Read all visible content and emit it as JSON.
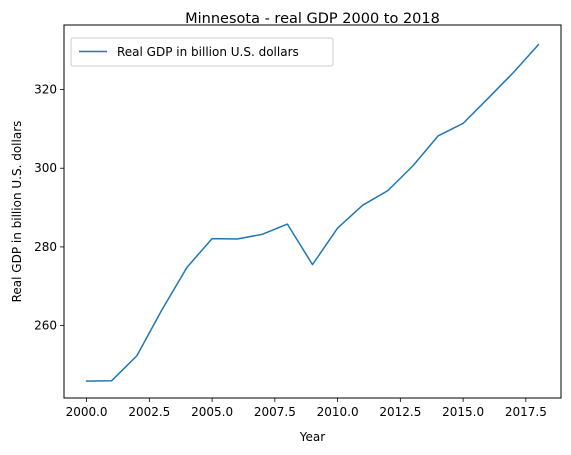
{
  "chart_data": {
    "type": "line",
    "title": "Minnesota - real GDP 2000 to 2018",
    "xlabel": "Year",
    "ylabel": "Real GDP in billion U.S. dollars",
    "x": [
      2000,
      2001,
      2002,
      2003,
      2004,
      2005,
      2006,
      2007,
      2008,
      2009,
      2010,
      2011,
      2012,
      2013,
      2014,
      2015,
      2016,
      2017,
      2018
    ],
    "series": [
      {
        "name": "Real GDP in billion U.S. dollars",
        "color": "#1f77b4",
        "values": [
          245.9,
          246.0,
          252.3,
          264.0,
          274.8,
          282.1,
          282.0,
          283.2,
          285.8,
          275.5,
          284.8,
          290.6,
          294.3,
          300.6,
          308.2,
          311.4,
          317.8,
          324.3,
          331.4
        ]
      }
    ],
    "xlim": [
      1999.1,
      2018.9
    ],
    "ylim": [
      241.6,
      336.4
    ],
    "xticks": [
      2000.0,
      2002.5,
      2005.0,
      2007.5,
      2010.0,
      2012.5,
      2015.0,
      2017.5
    ],
    "xtick_labels": [
      "2000.0",
      "2002.5",
      "2005.0",
      "2007.5",
      "2010.0",
      "2012.5",
      "2015.0",
      "2017.5"
    ],
    "yticks": [
      260,
      280,
      300,
      320
    ],
    "ytick_labels": [
      "260",
      "280",
      "300",
      "320"
    ],
    "grid": false,
    "legend_position": "upper-left"
  }
}
